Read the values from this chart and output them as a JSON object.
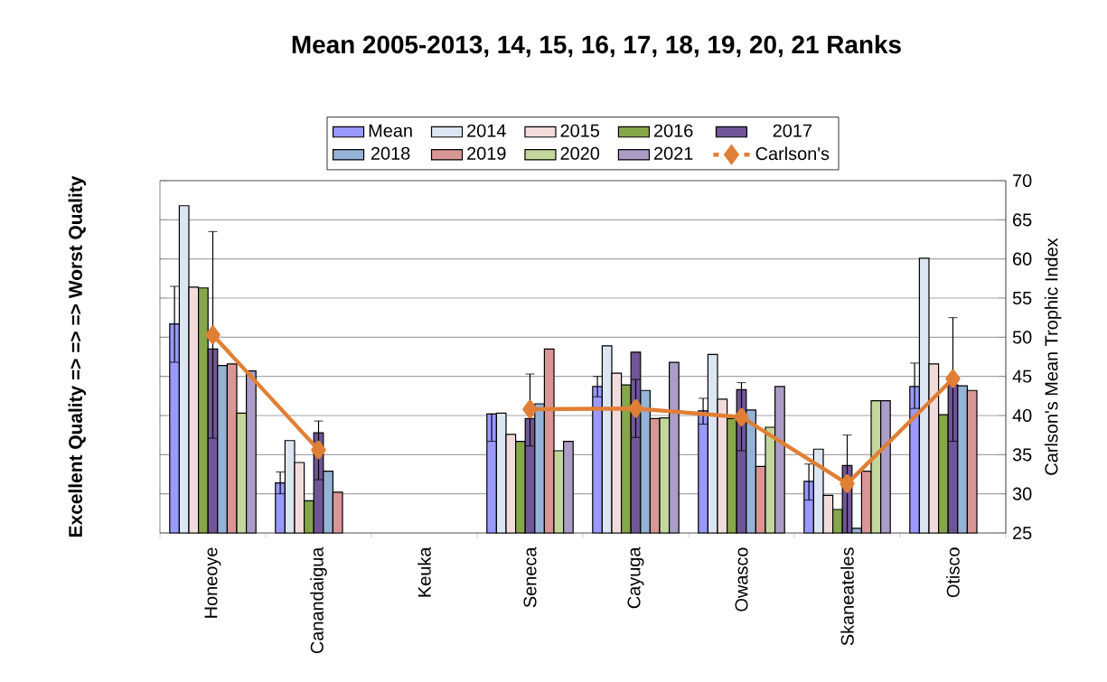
{
  "chart_data": {
    "type": "bar",
    "title": "Mean 2005-2013,  14,  15,  16,  17,  18,  19,  20,  21 Ranks",
    "ylabel": "Excellent Quality  =>  =>  =>  Worst  Quality",
    "y2label": "Carlson's Mean Trophic Index",
    "categories": [
      "Honeoye",
      "Canandaigua",
      "Keuka",
      "Seneca",
      "Cayuga",
      "Owasco",
      "Skaneateles",
      "Otisco"
    ],
    "series": [
      {
        "name": "Mean",
        "axis": "y2",
        "color": "#9999ff",
        "values": [
          51.7,
          31.4,
          null,
          40.2,
          43.7,
          40.6,
          31.6,
          43.7
        ],
        "errors": [
          [
            46.8,
            56.5
          ],
          [
            30.0,
            32.8
          ],
          null,
          [
            36.7,
            40.2
          ],
          [
            42.4,
            45.0
          ],
          [
            38.9,
            42.2
          ],
          [
            29.2,
            33.8
          ],
          [
            40.9,
            46.7
          ]
        ]
      },
      {
        "name": "2014",
        "axis": "y2",
        "color": "#dce6f2",
        "values": [
          66.8,
          36.8,
          null,
          40.3,
          48.9,
          47.8,
          35.7,
          60.1
        ]
      },
      {
        "name": "2015",
        "axis": "y2",
        "color": "#f2dcdb",
        "values": [
          56.4,
          34.0,
          null,
          37.6,
          45.4,
          42.1,
          29.8,
          46.6
        ]
      },
      {
        "name": "2016",
        "axis": "y2",
        "color": "#86a64a",
        "values": [
          56.3,
          29.1,
          null,
          36.7,
          43.9,
          39.6,
          28.0,
          40.1
        ]
      },
      {
        "name": "2017",
        "axis": "y2",
        "color": "#705696",
        "values": [
          48.5,
          37.8,
          null,
          39.6,
          48.1,
          43.3,
          33.6,
          43.9
        ]
      },
      {
        "name": "2018",
        "axis": "y2",
        "color": "#95b3d7",
        "values": [
          46.4,
          32.9,
          null,
          41.5,
          43.2,
          40.7,
          25.6,
          43.8
        ]
      },
      {
        "name": "2019",
        "axis": "y2",
        "color": "#d99694",
        "values": [
          46.6,
          30.2,
          null,
          48.5,
          39.6,
          33.5,
          32.9,
          43.2
        ]
      },
      {
        "name": "2020",
        "axis": "y2",
        "color": "#c3d69b",
        "values": [
          40.3,
          null,
          null,
          35.5,
          39.7,
          38.5,
          41.9,
          null
        ]
      },
      {
        "name": "2021",
        "axis": "y2",
        "color": "#ab9dc6",
        "values": [
          45.7,
          null,
          null,
          36.7,
          46.8,
          43.7,
          41.9,
          null
        ]
      },
      {
        "name": "Carlson's",
        "type": "line",
        "axis": "y2",
        "color": "#e07f35",
        "marker": "diamond",
        "line_style": "solid",
        "values": [
          50.3,
          35.6,
          null,
          40.8,
          40.9,
          39.8,
          31.3,
          44.7
        ],
        "errors": [
          [
            37.1,
            63.5
          ],
          [
            31.8,
            39.3
          ],
          null,
          [
            36.1,
            45.3
          ],
          [
            37.2,
            44.6
          ],
          [
            35.5,
            44.2
          ],
          [
            25,
            37.5
          ],
          [
            36.7,
            52.5
          ]
        ]
      }
    ],
    "y2lim": [
      25,
      70
    ],
    "y2ticks": [
      25,
      30,
      35,
      40,
      45,
      50,
      55,
      60,
      65,
      70
    ],
    "grid": "y",
    "legend": "top"
  }
}
